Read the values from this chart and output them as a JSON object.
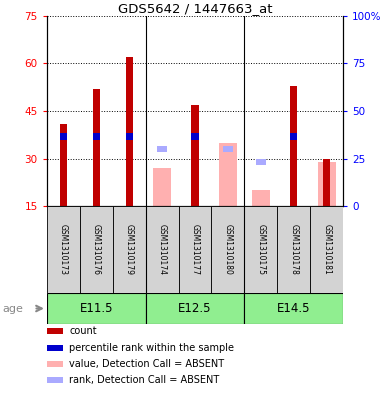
{
  "title": "GDS5642 / 1447663_at",
  "samples": [
    "GSM1310173",
    "GSM1310176",
    "GSM1310179",
    "GSM1310174",
    "GSM1310177",
    "GSM1310180",
    "GSM1310175",
    "GSM1310178",
    "GSM1310181"
  ],
  "age_groups": [
    {
      "label": "E11.5",
      "start": 0,
      "end": 3
    },
    {
      "label": "E12.5",
      "start": 3,
      "end": 6
    },
    {
      "label": "E14.5",
      "start": 6,
      "end": 9
    }
  ],
  "count_values": [
    41,
    52,
    62,
    null,
    47,
    null,
    null,
    53,
    30
  ],
  "percentile_values": [
    37,
    37,
    37,
    null,
    37,
    null,
    null,
    37,
    null
  ],
  "absent_value_bars": [
    null,
    null,
    null,
    27,
    null,
    35,
    20,
    null,
    29
  ],
  "absent_rank_marks": [
    null,
    null,
    null,
    33,
    null,
    33,
    29,
    null,
    null
  ],
  "ylim_left": [
    15,
    75
  ],
  "ylim_right": [
    0,
    100
  ],
  "yticks_left": [
    15,
    30,
    45,
    60,
    75
  ],
  "yticks_right": [
    0,
    25,
    50,
    75,
    100
  ],
  "ytick_labels_right": [
    "0",
    "25",
    "50",
    "75",
    "100%"
  ],
  "count_color": "#C00000",
  "percentile_color": "#0000CC",
  "absent_value_color": "#FFB0B0",
  "absent_rank_color": "#AAAAFF",
  "age_bg_color": "#90EE90",
  "sample_bg_color": "#D3D3D3",
  "group_separators": [
    2.5,
    5.5
  ]
}
